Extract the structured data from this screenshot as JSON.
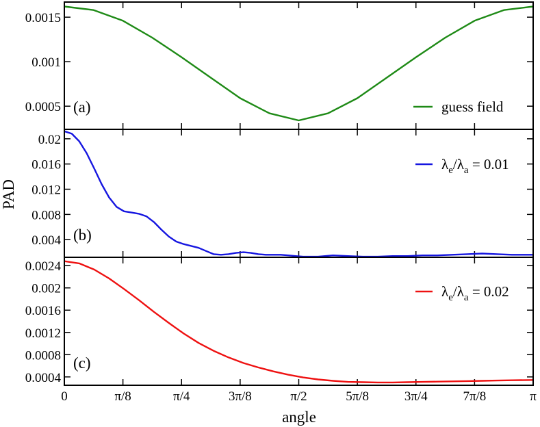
{
  "chart_data": {
    "type": "line",
    "ylabel": "PAD",
    "xlabel": "angle",
    "xlim": [
      0,
      3.14159265
    ],
    "x_ticks": [
      {
        "value": 0,
        "label": "0"
      },
      {
        "value": 0.39269908,
        "label": "π/8"
      },
      {
        "value": 0.78539816,
        "label": "π/4"
      },
      {
        "value": 1.17809725,
        "label": "3π/8"
      },
      {
        "value": 1.57079633,
        "label": "π/2"
      },
      {
        "value": 1.96349541,
        "label": "5π/8"
      },
      {
        "value": 2.35619449,
        "label": "3π/4"
      },
      {
        "value": 2.74889357,
        "label": "7π/8"
      },
      {
        "value": 3.14159265,
        "label": "π"
      }
    ],
    "panels": [
      {
        "tag": "(a)",
        "ylim": [
          0.00024,
          0.00167
        ],
        "y_ticks": [
          {
            "value": 0.0005,
            "label": "0.0005"
          },
          {
            "value": 0.001,
            "label": "0.001"
          },
          {
            "value": 0.0015,
            "label": "0.0015"
          }
        ],
        "legend": {
          "label": "guess field"
        },
        "series": {
          "name": "guess field",
          "color": "#1e8a16",
          "x": [
            0,
            0.19635,
            0.3927,
            0.58905,
            0.7854,
            0.98175,
            1.1781,
            1.37445,
            1.5708,
            1.76715,
            1.9635,
            2.15985,
            2.3562,
            2.55255,
            2.7489,
            2.94525,
            3.14159
          ],
          "y": [
            0.00162,
            0.00158,
            0.00146,
            0.00127,
            0.00105,
            0.00082,
            0.00059,
            0.00042,
            0.00034,
            0.00042,
            0.00059,
            0.00082,
            0.00105,
            0.00127,
            0.00146,
            0.00158,
            0.00162
          ]
        }
      },
      {
        "tag": "(b)",
        "ylim": [
          0.0012,
          0.0215
        ],
        "y_ticks": [
          {
            "value": 0.004,
            "label": "0.004"
          },
          {
            "value": 0.008,
            "label": "0.008"
          },
          {
            "value": 0.012,
            "label": "0.012"
          },
          {
            "value": 0.016,
            "label": "0.016"
          },
          {
            "value": 0.02,
            "label": "0.02"
          }
        ],
        "legend": {
          "base1": "λ",
          "sub1": "e",
          "sep": "/",
          "base2": "λ",
          "sub2": "a",
          "tail": " = 0.01"
        },
        "series": {
          "name": "λe/λa = 0.01",
          "color": "#1616e0",
          "x": [
            0,
            0.05,
            0.1,
            0.15,
            0.2,
            0.25,
            0.3,
            0.35,
            0.4,
            0.45,
            0.5,
            0.55,
            0.6,
            0.65,
            0.7,
            0.75,
            0.8,
            0.85,
            0.9,
            0.95,
            1.0,
            1.05,
            1.1,
            1.15,
            1.2,
            1.25,
            1.3,
            1.35,
            1.4,
            1.45,
            1.5,
            1.55,
            1.6,
            1.7,
            1.8,
            1.9,
            2.0,
            2.1,
            2.2,
            2.3,
            2.4,
            2.5,
            2.6,
            2.7,
            2.8,
            2.9,
            3.0,
            3.14159
          ],
          "y": [
            0.0212,
            0.0208,
            0.0196,
            0.0177,
            0.0153,
            0.0128,
            0.0107,
            0.0092,
            0.0085,
            0.0083,
            0.0081,
            0.0077,
            0.0068,
            0.0056,
            0.0045,
            0.0037,
            0.0033,
            0.003,
            0.0027,
            0.0022,
            0.0017,
            0.0016,
            0.0017,
            0.0019,
            0.002,
            0.0019,
            0.0017,
            0.0016,
            0.0016,
            0.0016,
            0.0015,
            0.0014,
            0.0013,
            0.0013,
            0.0015,
            0.0014,
            0.0013,
            0.0013,
            0.0014,
            0.0014,
            0.0015,
            0.0015,
            0.0016,
            0.0017,
            0.0018,
            0.0017,
            0.0016,
            0.0016
          ]
        }
      },
      {
        "tag": "(c)",
        "ylim": [
          0.00025,
          0.00255
        ],
        "y_ticks": [
          {
            "value": 0.0004,
            "label": "0.0004"
          },
          {
            "value": 0.0008,
            "label": "0.0008"
          },
          {
            "value": 0.0012,
            "label": "0.0012"
          },
          {
            "value": 0.0016,
            "label": "0.0016"
          },
          {
            "value": 0.002,
            "label": "0.002"
          },
          {
            "value": 0.0024,
            "label": "0.0024"
          }
        ],
        "legend": {
          "base1": "λ",
          "sub1": "e",
          "sep": "/",
          "base2": "λ",
          "sub2": "a",
          "tail": " = 0.02"
        },
        "series": {
          "name": "λe/λa = 0.02",
          "color": "#ee1111",
          "x": [
            0,
            0.1,
            0.2,
            0.3,
            0.4,
            0.5,
            0.6,
            0.7,
            0.8,
            0.9,
            1.0,
            1.1,
            1.2,
            1.3,
            1.4,
            1.5,
            1.6,
            1.7,
            1.8,
            1.9,
            2.0,
            2.1,
            2.2,
            2.3,
            2.4,
            2.5,
            2.6,
            2.7,
            2.8,
            2.9,
            3.0,
            3.14159
          ],
          "y": [
            0.00248,
            0.00244,
            0.00233,
            0.00217,
            0.00198,
            0.00178,
            0.00157,
            0.00137,
            0.00118,
            0.00101,
            0.00087,
            0.00075,
            0.00065,
            0.00057,
            0.0005,
            0.00044,
            0.00039,
            0.000355,
            0.00033,
            0.00031,
            0.000305,
            0.0003,
            0.0003,
            0.000305,
            0.00031,
            0.000315,
            0.00032,
            0.000325,
            0.00033,
            0.000335,
            0.00034,
            0.000345
          ]
        }
      }
    ]
  }
}
